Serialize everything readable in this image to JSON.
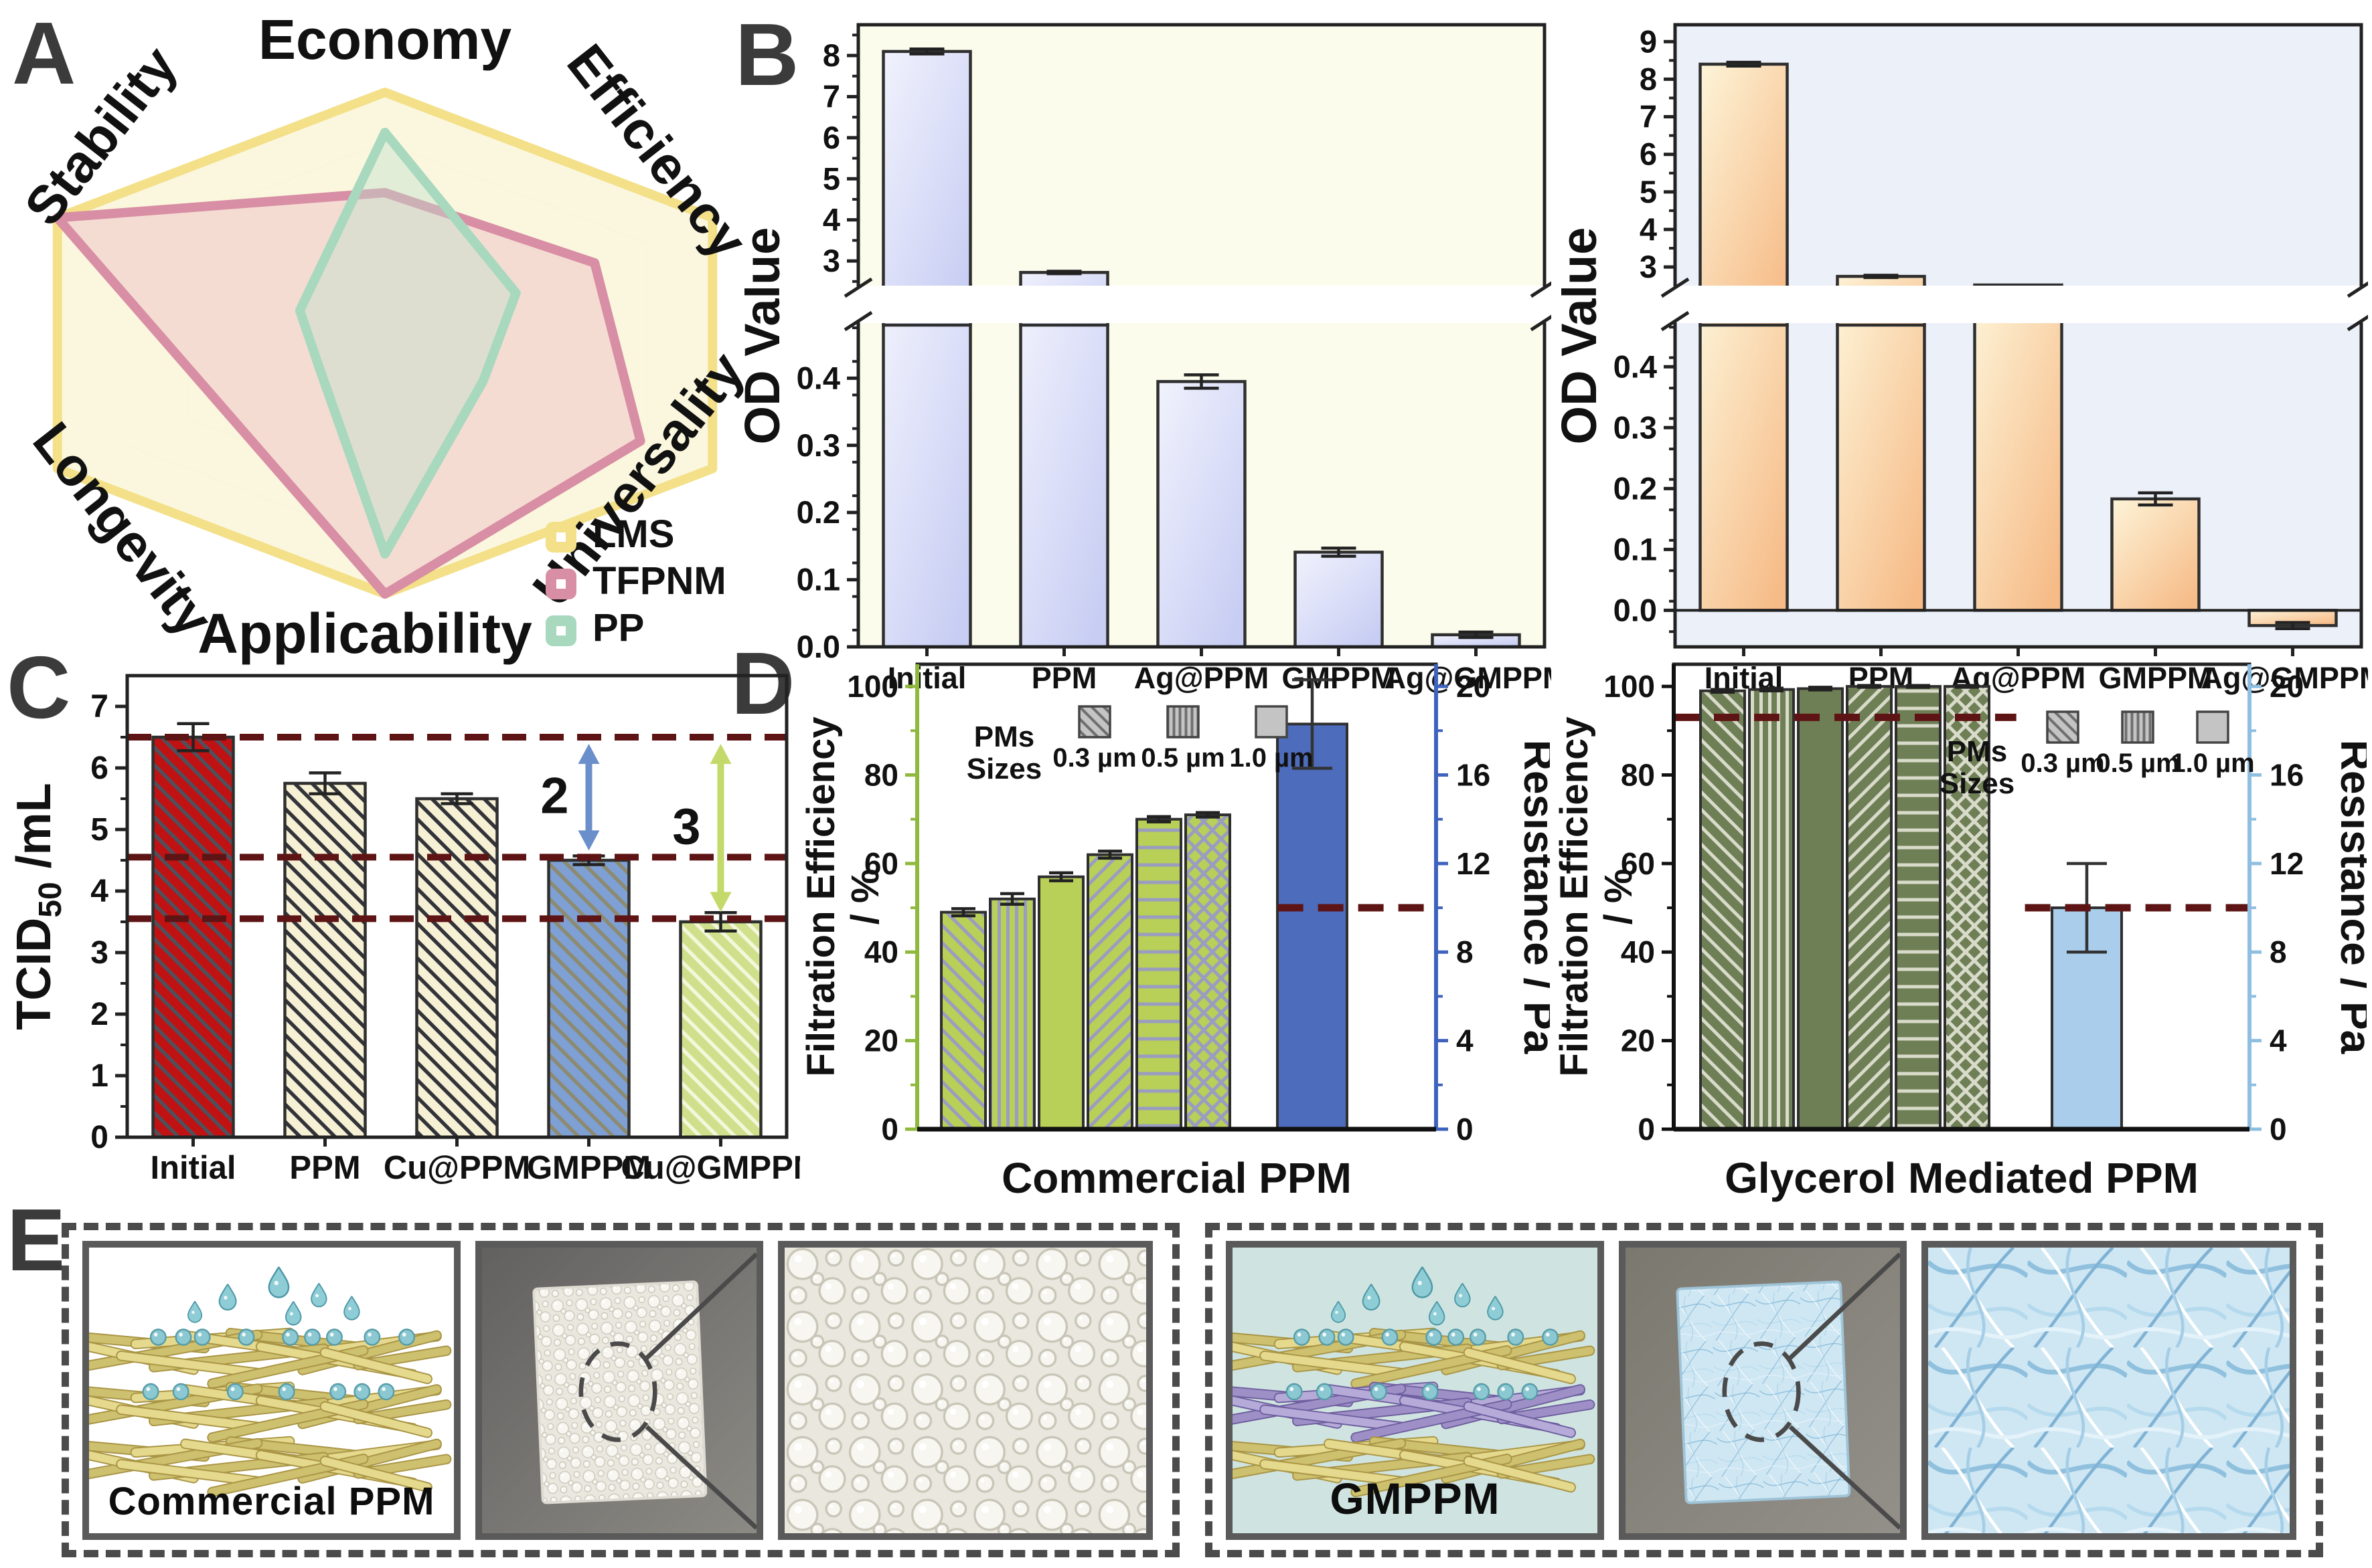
{
  "panel_letters": {
    "A": "A",
    "B": "B",
    "C": "C",
    "D": "D",
    "E": "E"
  },
  "chart_data": [
    {
      "id": "radar",
      "panel": "A",
      "type": "radar",
      "axes": [
        "Economy",
        "Efficiency",
        "Universality",
        "Applicability",
        "Longevity",
        "Stability"
      ],
      "max": 5,
      "rings": [
        1,
        2,
        3,
        4,
        5
      ],
      "series": [
        {
          "name": "LMS",
          "values": [
            5,
            5,
            5,
            5,
            5,
            5
          ],
          "stroke": "#F3E089",
          "fill": "#FBF7DC",
          "fill_opacity": 0.95
        },
        {
          "name": "TFPNM",
          "values": [
            3.0,
            3.2,
            3.9,
            5,
            2.5,
            5
          ],
          "stroke": "#D88EA4",
          "fill": "#E9B7C0",
          "fill_opacity": 0.42
        },
        {
          "name": "PP",
          "values": [
            4.2,
            2.0,
            1.5,
            4.2,
            1.0,
            1.3
          ],
          "stroke": "#A8D8BE",
          "fill": "#BFE0CD",
          "fill_opacity": 0.42
        }
      ],
      "legend_position": "bottom-right"
    },
    {
      "id": "od_left",
      "panel": "B",
      "type": "bar",
      "broken_axis": true,
      "ylabel": "OD Value",
      "categories": [
        "Initial",
        "PPM",
        "Ag@PPM",
        "GMPPM",
        "Ag@GMPPM"
      ],
      "values": [
        8.1,
        2.72,
        0.395,
        0.141,
        0.018
      ],
      "errors": [
        0.06,
        0.03,
        0.01,
        0.006,
        0.004
      ],
      "upper_ticks": [
        3,
        4,
        5,
        6,
        7,
        8
      ],
      "lower_ticks": [
        0,
        0.1,
        0.2,
        0.3,
        0.4
      ],
      "upper_range": [
        2.35,
        8.75
      ],
      "lower_range": [
        0,
        0.485
      ],
      "colors": {
        "bar_light": "#F1F2FD",
        "bar_dark": "#C7CDF3",
        "outline": "#2F2F2F",
        "plot_bg": "#FCFCEC"
      }
    },
    {
      "id": "od_right",
      "panel": "B",
      "type": "bar",
      "broken_axis": true,
      "ylabel": "OD Value",
      "categories": [
        "Initial",
        "PPM",
        "Ag@PPM",
        "GMPPM",
        "Ag@GMPPM"
      ],
      "values": [
        8.4,
        2.75,
        0.475,
        0.183,
        -0.025
      ],
      "errors": [
        0.05,
        0.03,
        0.018,
        0.01,
        0.005
      ],
      "upper_ticks": [
        3,
        4,
        5,
        6,
        7,
        8,
        9
      ],
      "lower_ticks": [
        0,
        0.1,
        0.2,
        0.3,
        0.4
      ],
      "upper_range": [
        2.45,
        9.45
      ],
      "lower_range": [
        -0.06,
        0.475
      ],
      "colors": {
        "bar_light": "#FDF4D8",
        "bar_dark": "#F6BB87",
        "outline": "#2F2F2F",
        "plot_bg": "#ECF0F9"
      }
    },
    {
      "id": "tcid",
      "panel": "C",
      "type": "bar",
      "ylabel": "TCID50 /mL",
      "ylabel_parts": {
        "main": "TCID",
        "sub": "50",
        "rest": " /mL"
      },
      "categories": [
        "Initial",
        "PPM",
        "Cu@PPM",
        "GMPPM",
        "Cu@GMPPM"
      ],
      "values": [
        6.5,
        5.75,
        5.5,
        4.5,
        3.5
      ],
      "errors": [
        0.22,
        0.17,
        0.08,
        0.07,
        0.15
      ],
      "yticks": [
        0,
        1,
        2,
        3,
        4,
        5,
        6,
        7
      ],
      "ylim": [
        0,
        7.5
      ],
      "guide_lines": [
        6.5,
        4.55,
        3.55
      ],
      "guide_color": "#5E1414",
      "arrows": [
        {
          "at": "GMPPM",
          "from": 6.5,
          "to": 4.55,
          "label": "2",
          "color": "#6B8FCB"
        },
        {
          "at": "Cu@GMPPM",
          "from": 6.5,
          "to": 3.55,
          "label": "3",
          "color": "#C3D96A"
        }
      ],
      "bars": [
        {
          "fill": "#C01212",
          "hatch": "#50505C"
        },
        {
          "fill": "#F6F0D4",
          "hatch": "#33333A"
        },
        {
          "fill": "#F6F0D4",
          "hatch": "#33333A"
        },
        {
          "fill": "#7FA0D4",
          "hatch": "#8C8B72"
        },
        {
          "fill": "#CFDF8C",
          "hatch": "#F3F7DA"
        }
      ]
    },
    {
      "id": "filt_left",
      "panel": "D",
      "type": "bar-dual-axis",
      "xlabel": "Commercial PPM",
      "ylabel_left": "Filtration Efficiency",
      "ylabel_left2": "/ %",
      "ylabel_right": "Resistance / Pa",
      "left_ticks": [
        0,
        20,
        40,
        60,
        80,
        100
      ],
      "right_ticks": [
        0,
        4,
        8,
        12,
        16,
        20
      ],
      "legend_title_lines": [
        "PMs",
        "Sizes"
      ],
      "pm_sizes": [
        "0.3 µm",
        "0.5 µm",
        "1.0 µm"
      ],
      "efficiency": {
        "values": [
          49,
          52,
          57,
          62,
          70,
          71
        ],
        "errors": [
          0.8,
          1.2,
          0.9,
          0.8,
          0.6,
          0.5
        ],
        "bar_color": "#B8CF58",
        "hatch_color": "#9A9DC0"
      },
      "resistance": {
        "value": 18.3,
        "error": 2.0,
        "bar_color": "#4D6CBB"
      },
      "dashed_reference": [
        {
          "value": 10,
          "axis": "right"
        }
      ],
      "guide_color": "#5E1414",
      "axis_colors": {
        "left": "#8FB93C",
        "right": "#3E63BE"
      }
    },
    {
      "id": "filt_right",
      "panel": "D",
      "type": "bar-dual-axis",
      "xlabel": "Glycerol Mediated PPM",
      "ylabel_left": "Filtration Efficiency",
      "ylabel_left2": "/ %",
      "ylabel_right": "Resistance / Pa",
      "left_ticks": [
        0,
        20,
        40,
        60,
        80,
        100
      ],
      "right_ticks": [
        0,
        4,
        8,
        12,
        16,
        20
      ],
      "legend_title_lines": [
        "PMs",
        "Sizes"
      ],
      "pm_sizes": [
        "0.3 µm",
        "0.5 µm",
        "1.0 µm"
      ],
      "efficiency": {
        "values": [
          99,
          99.3,
          99.5,
          100,
          100,
          100
        ],
        "errors": [
          0.3,
          0.3,
          0.3,
          0.2,
          0.2,
          0.2
        ],
        "bar_color": "#6F7F55",
        "hatch_color": "#D8DBCA"
      },
      "resistance": {
        "value": 10,
        "error": 2.0,
        "bar_color": "#A9CDEB"
      },
      "dashed_reference": [
        {
          "value": 93,
          "axis": "left"
        },
        {
          "value": 10,
          "axis": "right"
        }
      ],
      "guide_color": "#5E1414",
      "axis_colors": {
        "left": "#111111",
        "right": "#8FBFE0"
      }
    }
  ],
  "panel_e": {
    "groups": [
      {
        "caption": "Commercial PPM"
      },
      {
        "caption": "GMPPM"
      }
    ]
  }
}
